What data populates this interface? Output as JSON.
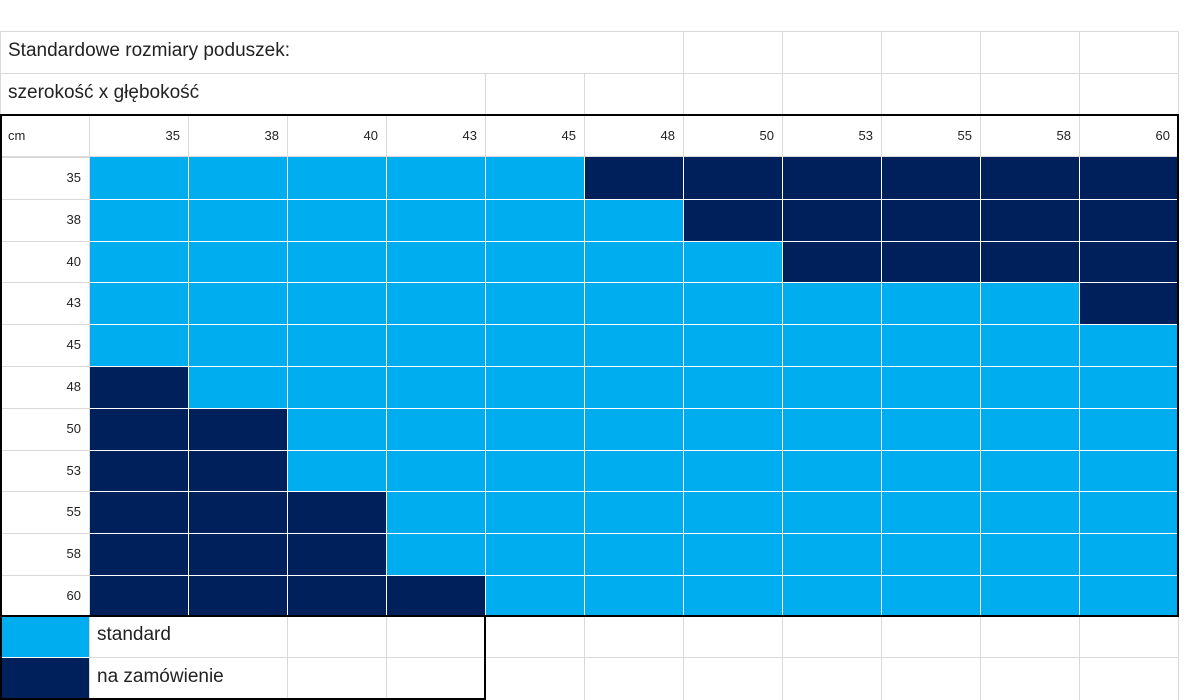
{
  "title": "Standardowe rozmiary poduszek:",
  "subtitle": "szerokość x głębokość",
  "unit": "cm",
  "widths": [
    35,
    38,
    40,
    43,
    45,
    48,
    50,
    53,
    55,
    58,
    60
  ],
  "depths": [
    35,
    38,
    40,
    43,
    45,
    48,
    50,
    53,
    55,
    58,
    60
  ],
  "grid": [
    [
      "S",
      "S",
      "S",
      "S",
      "S",
      "Z",
      "Z",
      "Z",
      "Z",
      "Z",
      "Z"
    ],
    [
      "S",
      "S",
      "S",
      "S",
      "S",
      "S",
      "Z",
      "Z",
      "Z",
      "Z",
      "Z"
    ],
    [
      "S",
      "S",
      "S",
      "S",
      "S",
      "S",
      "S",
      "Z",
      "Z",
      "Z",
      "Z"
    ],
    [
      "S",
      "S",
      "S",
      "S",
      "S",
      "S",
      "S",
      "S",
      "S",
      "S",
      "Z"
    ],
    [
      "S",
      "S",
      "S",
      "S",
      "S",
      "S",
      "S",
      "S",
      "S",
      "S",
      "S"
    ],
    [
      "Z",
      "S",
      "S",
      "S",
      "S",
      "S",
      "S",
      "S",
      "S",
      "S",
      "S"
    ],
    [
      "Z",
      "Z",
      "S",
      "S",
      "S",
      "S",
      "S",
      "S",
      "S",
      "S",
      "S"
    ],
    [
      "Z",
      "Z",
      "S",
      "S",
      "S",
      "S",
      "S",
      "S",
      "S",
      "S",
      "S"
    ],
    [
      "Z",
      "Z",
      "Z",
      "S",
      "S",
      "S",
      "S",
      "S",
      "S",
      "S",
      "S"
    ],
    [
      "Z",
      "Z",
      "Z",
      "S",
      "S",
      "S",
      "S",
      "S",
      "S",
      "S",
      "S"
    ],
    [
      "Z",
      "Z",
      "Z",
      "Z",
      "S",
      "S",
      "S",
      "S",
      "S",
      "S",
      "S"
    ]
  ],
  "legend": [
    {
      "key": "S",
      "label": "standard",
      "color": "#00AEEF"
    },
    {
      "key": "Z",
      "label": "na zamówienie",
      "color": "#00205B"
    }
  ],
  "colors": {
    "standard": "#00AEEF",
    "custom": "#00205B",
    "gridline": "#D9D9D9",
    "border": "#000000"
  }
}
